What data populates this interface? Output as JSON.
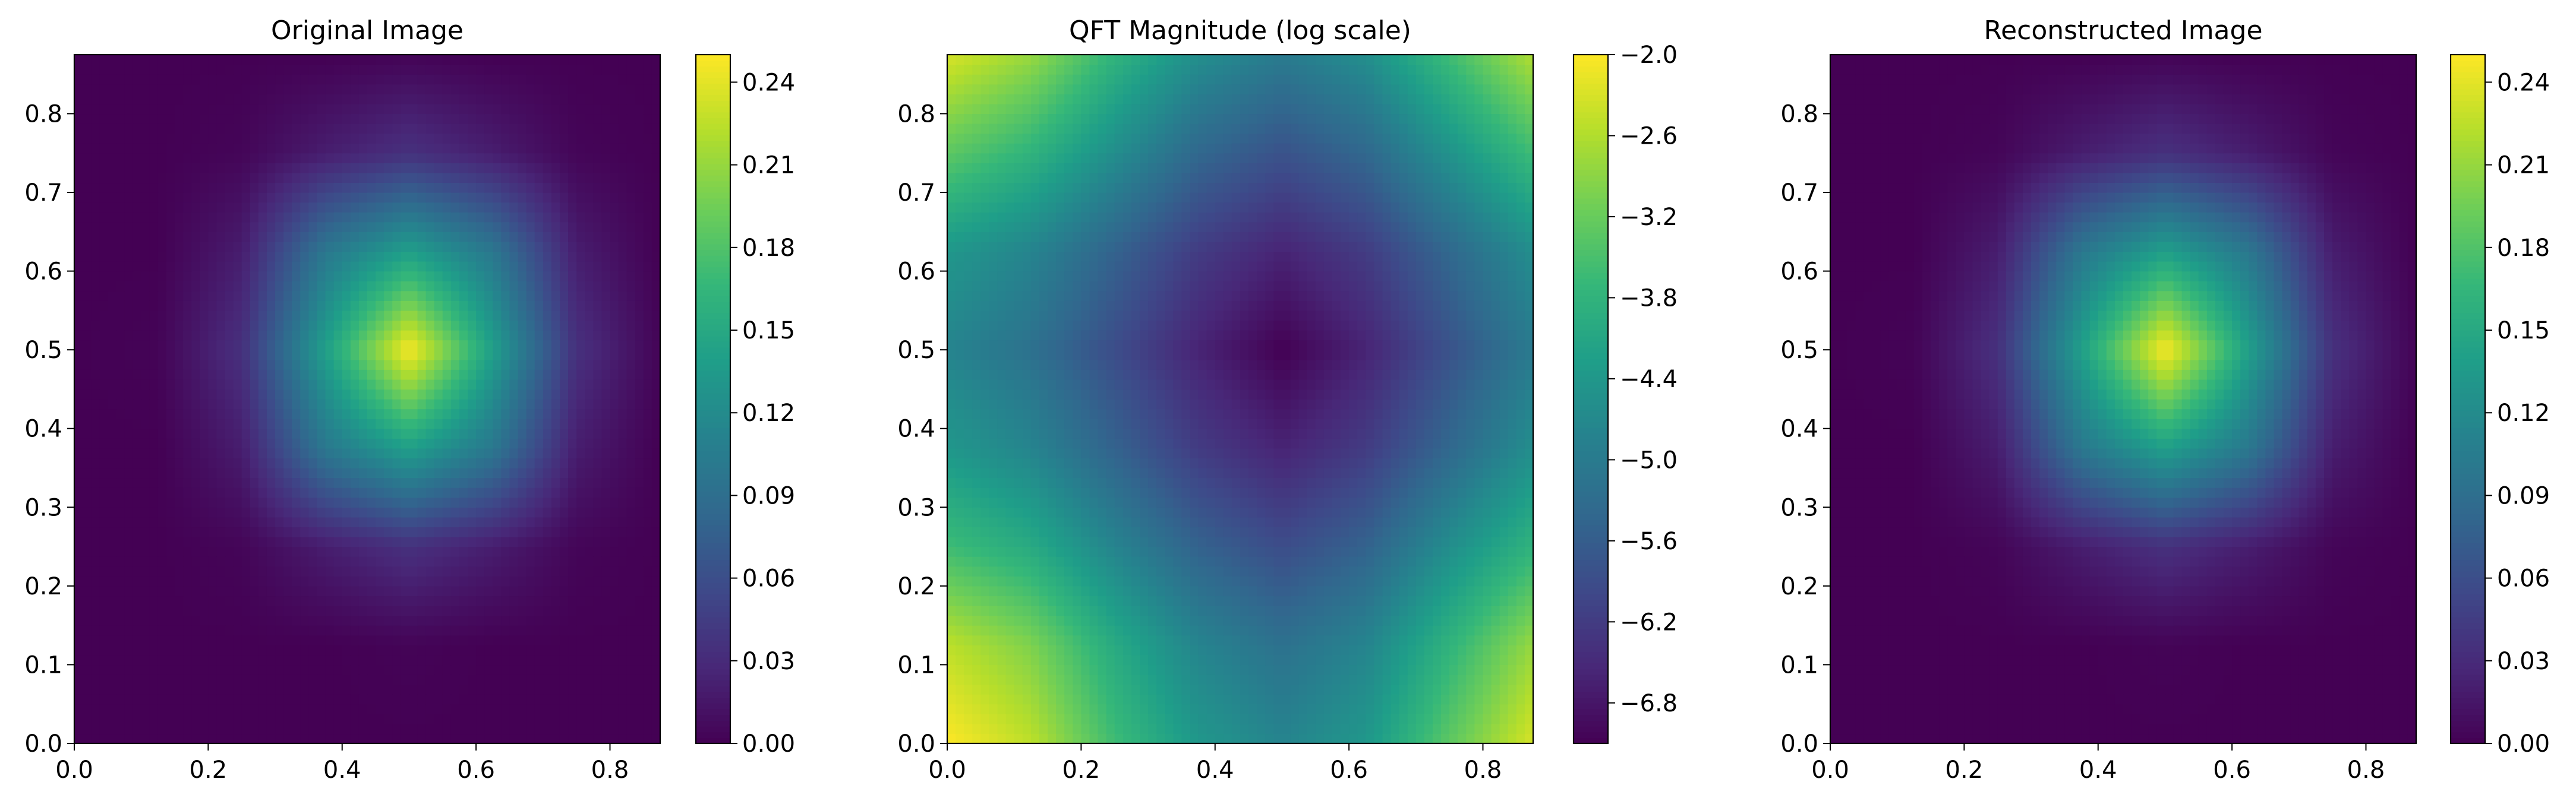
{
  "colormap_stops": [
    "#440154",
    "#482878",
    "#3e4989",
    "#31688e",
    "#26828e",
    "#1f9e89",
    "#35b779",
    "#6ece58",
    "#b5de2b",
    "#fde725"
  ],
  "chart_data": [
    {
      "type": "heatmap",
      "title": "Original Image",
      "xlim": [
        0,
        0.875
      ],
      "ylim": [
        0,
        0.875
      ],
      "xticks": [
        0,
        0.2,
        0.4,
        0.6,
        0.8
      ],
      "xtick_labels": [
        "0.0",
        "0.2",
        "0.4",
        "0.6",
        "0.8"
      ],
      "yticks": [
        0,
        0.1,
        0.2,
        0.3,
        0.4,
        0.5,
        0.6,
        0.7,
        0.8
      ],
      "ytick_labels": [
        "0.0",
        "0.1",
        "0.2",
        "0.3",
        "0.4",
        "0.5",
        "0.6",
        "0.7",
        "0.8"
      ],
      "colorbar": {
        "range": [
          0,
          0.25
        ],
        "ticks": [
          0,
          0.03,
          0.06,
          0.09,
          0.12,
          0.15,
          0.18,
          0.21,
          0.24
        ],
        "tick_labels": [
          "0.00",
          "0.03",
          "0.06",
          "0.09",
          "0.12",
          "0.15",
          "0.18",
          "0.21",
          "0.24"
        ]
      },
      "pattern": "centered gaussian peak at (0.5, 0.5), max ≈ 0.25",
      "grid_points": [
        0,
        0.125,
        0.25,
        0.375,
        0.5,
        0.625,
        0.75,
        0.875
      ],
      "values": [
        [
          0,
          0,
          0,
          0,
          0,
          0,
          0,
          0
        ],
        [
          0,
          0,
          0,
          0,
          0.002,
          0,
          0,
          0
        ],
        [
          0,
          0,
          0.003,
          0.02,
          0.035,
          0.02,
          0.003,
          0
        ],
        [
          0,
          0,
          0.02,
          0.1,
          0.14,
          0.1,
          0.02,
          0
        ],
        [
          0,
          0.002,
          0.035,
          0.14,
          0.25,
          0.14,
          0.035,
          0.002
        ],
        [
          0,
          0,
          0.02,
          0.1,
          0.14,
          0.1,
          0.02,
          0
        ],
        [
          0,
          0,
          0.003,
          0.02,
          0.035,
          0.02,
          0.003,
          0
        ],
        [
          0,
          0,
          0,
          0,
          0.002,
          0,
          0,
          0
        ]
      ]
    },
    {
      "type": "heatmap",
      "title": "QFT Magnitude (log scale)",
      "xlim": [
        0,
        0.875
      ],
      "ylim": [
        0,
        0.875
      ],
      "xticks": [
        0,
        0.2,
        0.4,
        0.6,
        0.8
      ],
      "xtick_labels": [
        "0.0",
        "0.2",
        "0.4",
        "0.6",
        "0.8"
      ],
      "yticks": [
        0,
        0.1,
        0.2,
        0.3,
        0.4,
        0.5,
        0.6,
        0.7,
        0.8
      ],
      "ytick_labels": [
        "0.0",
        "0.1",
        "0.2",
        "0.3",
        "0.4",
        "0.5",
        "0.6",
        "0.7",
        "0.8"
      ],
      "colorbar": {
        "range": [
          -7.1,
          -2.0
        ],
        "ticks": [
          -2.0,
          -2.6,
          -3.2,
          -3.8,
          -4.4,
          -5.0,
          -5.6,
          -6.2,
          -6.8
        ],
        "tick_labels": [
          "−2.0",
          "−2.6",
          "−3.2",
          "−3.8",
          "−4.4",
          "−5.0",
          "−5.6",
          "−6.2",
          "−6.8"
        ]
      },
      "pattern": "maximum at corners, minimum at center (0.5, 0.5)",
      "grid_points": [
        0,
        0.125,
        0.25,
        0.375,
        0.5,
        0.625,
        0.75,
        0.875
      ],
      "values": [
        [
          -2.0,
          -2.5,
          -3.6,
          -4.4,
          -4.8,
          -4.4,
          -3.3,
          -2.3
        ],
        [
          -2.5,
          -3.0,
          -4.0,
          -4.8,
          -5.2,
          -4.8,
          -3.8,
          -2.8
        ],
        [
          -3.6,
          -4.0,
          -4.8,
          -5.5,
          -5.9,
          -5.5,
          -4.6,
          -3.8
        ],
        [
          -4.4,
          -4.8,
          -5.5,
          -6.2,
          -6.6,
          -6.2,
          -5.4,
          -4.6
        ],
        [
          -4.8,
          -5.2,
          -5.9,
          -6.6,
          -7.1,
          -6.6,
          -5.8,
          -5.0
        ],
        [
          -4.4,
          -4.8,
          -5.5,
          -6.2,
          -6.6,
          -6.2,
          -5.4,
          -4.6
        ],
        [
          -3.3,
          -3.8,
          -4.6,
          -5.4,
          -5.8,
          -5.4,
          -4.5,
          -3.6
        ],
        [
          -2.3,
          -2.8,
          -3.8,
          -4.6,
          -5.0,
          -4.6,
          -3.6,
          -2.6
        ]
      ]
    },
    {
      "type": "heatmap",
      "title": "Reconstructed Image",
      "xlim": [
        0,
        0.875
      ],
      "ylim": [
        0,
        0.875
      ],
      "xticks": [
        0,
        0.2,
        0.4,
        0.6,
        0.8
      ],
      "xtick_labels": [
        "0.0",
        "0.2",
        "0.4",
        "0.6",
        "0.8"
      ],
      "yticks": [
        0,
        0.1,
        0.2,
        0.3,
        0.4,
        0.5,
        0.6,
        0.7,
        0.8
      ],
      "ytick_labels": [
        "0.0",
        "0.1",
        "0.2",
        "0.3",
        "0.4",
        "0.5",
        "0.6",
        "0.7",
        "0.8"
      ],
      "colorbar": {
        "range": [
          0,
          0.25
        ],
        "ticks": [
          0,
          0.03,
          0.06,
          0.09,
          0.12,
          0.15,
          0.18,
          0.21,
          0.24
        ],
        "tick_labels": [
          "0.00",
          "0.03",
          "0.06",
          "0.09",
          "0.12",
          "0.15",
          "0.18",
          "0.21",
          "0.24"
        ]
      },
      "pattern": "centered gaussian peak at (0.5, 0.5), max ≈ 0.25",
      "grid_points": [
        0,
        0.125,
        0.25,
        0.375,
        0.5,
        0.625,
        0.75,
        0.875
      ],
      "values": [
        [
          0,
          0,
          0,
          0,
          0,
          0,
          0,
          0
        ],
        [
          0,
          0,
          0,
          0,
          0.002,
          0,
          0,
          0
        ],
        [
          0,
          0,
          0.003,
          0.02,
          0.035,
          0.02,
          0.003,
          0
        ],
        [
          0,
          0,
          0.02,
          0.1,
          0.14,
          0.1,
          0.02,
          0
        ],
        [
          0,
          0.002,
          0.035,
          0.14,
          0.25,
          0.14,
          0.035,
          0.002
        ],
        [
          0,
          0,
          0.02,
          0.1,
          0.14,
          0.1,
          0.02,
          0
        ],
        [
          0,
          0,
          0.003,
          0.02,
          0.035,
          0.02,
          0.003,
          0
        ],
        [
          0,
          0,
          0,
          0,
          0.002,
          0,
          0,
          0
        ]
      ]
    }
  ]
}
